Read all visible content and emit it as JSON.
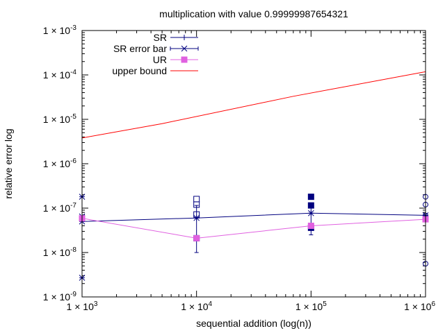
{
  "chart_data": {
    "type": "line",
    "title": "multiplication with value 0.99999987654321",
    "xlabel": "sequential addition (log(n))",
    "ylabel": "relative error log",
    "xscale": "log",
    "yscale": "log",
    "xlim": [
      1000,
      1000000
    ],
    "ylim": [
      1e-09,
      0.001
    ],
    "grid": false,
    "legend_position": "top-left",
    "x_ticks": [
      {
        "value": 1000,
        "mantissa": "1 × 10",
        "exp": "3"
      },
      {
        "value": 10000,
        "mantissa": "1 × 10",
        "exp": "4"
      },
      {
        "value": 100000,
        "mantissa": "1 × 10",
        "exp": "5"
      },
      {
        "value": 1000000,
        "mantissa": "1 × 10",
        "exp": "6"
      }
    ],
    "y_ticks": [
      {
        "value": 1e-09,
        "mantissa": "1 × 10",
        "exp": "-9"
      },
      {
        "value": 1e-08,
        "mantissa": "1 × 10",
        "exp": "-8"
      },
      {
        "value": 1e-07,
        "mantissa": "1 × 10",
        "exp": "-7"
      },
      {
        "value": 1e-06,
        "mantissa": "1 × 10",
        "exp": "-6"
      },
      {
        "value": 1e-05,
        "mantissa": "1 × 10",
        "exp": "-5"
      },
      {
        "value": 0.0001,
        "mantissa": "1 × 10",
        "exp": "-4"
      },
      {
        "value": 0.001,
        "mantissa": "1 × 10",
        "exp": "-3"
      }
    ],
    "series": [
      {
        "name": "SR",
        "color": "#00007f",
        "marker": "plus",
        "x": [
          1000,
          10000,
          100000,
          1000000
        ],
        "y": [
          5e-08,
          6e-08,
          7.7e-08,
          6.9e-08
        ]
      },
      {
        "name": "SR error bar",
        "color": "#00007f",
        "marker": "x",
        "x": [
          1000,
          10000,
          100000,
          1000000
        ],
        "y": [
          5e-08,
          6e-08,
          7.7e-08,
          6.9e-08
        ],
        "y_low": [
          5e-08,
          1e-08,
          2.5e-08,
          6.9e-08
        ],
        "y_high": [
          5e-08,
          1.15e-07,
          1.1e-07,
          6.9e-08
        ]
      },
      {
        "name": "UR",
        "color": "#e060e0",
        "marker": "square-filled",
        "x": [
          1000,
          10000,
          100000,
          1000000
        ],
        "y": [
          5.9e-08,
          2.1e-08,
          4e-08,
          5.6e-08
        ]
      },
      {
        "name": "upper bound",
        "color": "#ff0000",
        "marker": "none",
        "x": [
          1000,
          5000,
          70000,
          1000000
        ],
        "y": [
          3.8e-06,
          8e-06,
          3.3e-05,
          0.000118
        ]
      }
    ],
    "sample_points": [
      {
        "x": 1000,
        "y": 1.8e-07,
        "marker": "asterisk",
        "color": "#00007f"
      },
      {
        "x": 1000,
        "y": 6.5e-08,
        "marker": "asterisk",
        "color": "#00007f"
      },
      {
        "x": 1000,
        "y": 2.7e-09,
        "marker": "asterisk",
        "color": "#00007f"
      },
      {
        "x": 10000,
        "y": 1.6e-07,
        "marker": "square-open",
        "color": "#00007f"
      },
      {
        "x": 10000,
        "y": 1.2e-07,
        "marker": "square-open",
        "color": "#00007f"
      },
      {
        "x": 10000,
        "y": 7.2e-08,
        "marker": "square-open",
        "color": "#00007f"
      },
      {
        "x": 10000,
        "y": 2.1e-08,
        "marker": "square-open",
        "color": "#00007f"
      },
      {
        "x": 100000,
        "y": 1.8e-07,
        "marker": "square-filled",
        "color": "#00007f"
      },
      {
        "x": 100000,
        "y": 1.15e-07,
        "marker": "square-filled",
        "color": "#00007f"
      },
      {
        "x": 100000,
        "y": 3.6e-08,
        "marker": "square-filled",
        "color": "#00007f"
      },
      {
        "x": 1000000,
        "y": 1.8e-07,
        "marker": "circle-open",
        "color": "#00007f"
      },
      {
        "x": 1000000,
        "y": 1.2e-07,
        "marker": "circle-open",
        "color": "#00007f"
      },
      {
        "x": 1000000,
        "y": 6.8e-08,
        "marker": "circle-open",
        "color": "#00007f"
      },
      {
        "x": 1000000,
        "y": 6e-08,
        "marker": "circle-open",
        "color": "#00007f"
      },
      {
        "x": 1000000,
        "y": 5.6e-09,
        "marker": "circle-open",
        "color": "#00007f"
      }
    ]
  }
}
